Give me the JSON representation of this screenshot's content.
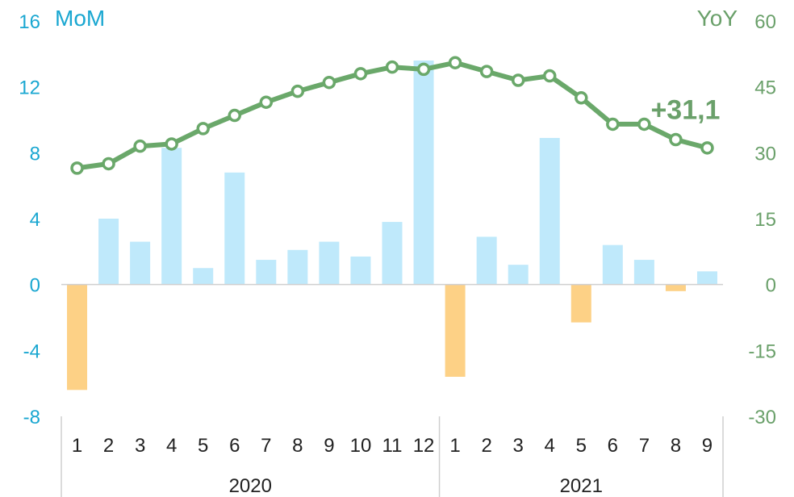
{
  "chart_data": {
    "type": "bar+line",
    "left_axis": {
      "title": "MoM",
      "ylim": [
        -8,
        16
      ],
      "ticks": [
        "16",
        "12",
        "8",
        "4",
        "0",
        "-4",
        "-8"
      ],
      "color": "#1aa7d1"
    },
    "right_axis": {
      "title": "YoY",
      "ylim": [
        -30,
        60
      ],
      "ticks": [
        "60",
        "45",
        "30",
        "15",
        "0",
        "-15",
        "-30"
      ],
      "color": "#6aa06a"
    },
    "categories": [
      "1",
      "2",
      "3",
      "4",
      "5",
      "6",
      "7",
      "8",
      "9",
      "10",
      "11",
      "12",
      "1",
      "2",
      "3",
      "4",
      "5",
      "6",
      "7",
      "8",
      "9"
    ],
    "groups": [
      {
        "label": "2020",
        "count": 12
      },
      {
        "label": "2021",
        "count": 9
      }
    ],
    "series": [
      {
        "type": "bar",
        "axis": "left",
        "values": [
          -6.4,
          4.0,
          2.6,
          8.3,
          1.0,
          6.8,
          1.5,
          2.1,
          2.6,
          1.7,
          3.8,
          13.6,
          -5.6,
          2.9,
          1.2,
          8.9,
          -2.3,
          2.4,
          1.5,
          -0.4,
          0.8
        ],
        "positive_color": "#bfe9fb",
        "negative_color": "#fdd186"
      },
      {
        "type": "line",
        "axis": "right",
        "values": [
          26.5,
          27.5,
          31.5,
          32.0,
          35.5,
          38.5,
          41.5,
          44.0,
          46.0,
          48.0,
          49.5,
          49.0,
          50.5,
          48.5,
          46.5,
          47.5,
          42.5,
          36.5,
          36.5,
          33.0,
          31.1
        ],
        "color": "#6aa86a"
      }
    ],
    "annotations": [
      {
        "text": "+31,1"
      }
    ],
    "grid": false
  }
}
